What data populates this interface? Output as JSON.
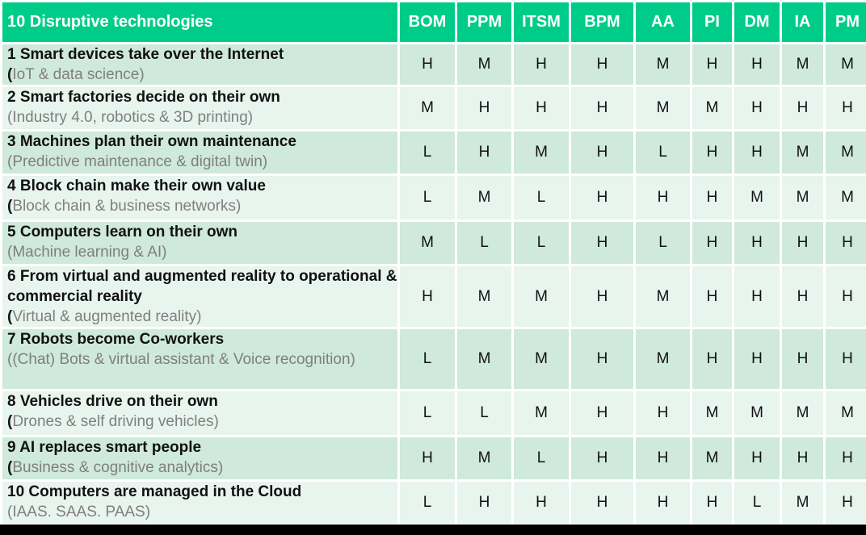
{
  "header": {
    "title": "10 Disruptive technologies",
    "columns": [
      "BOM",
      "PPM",
      "ITSM",
      "BPM",
      "AA",
      "PI",
      "DM",
      "IA",
      "PM"
    ]
  },
  "rows": [
    {
      "title": "1 Smart devices take over the Internet",
      "sub_open": "(",
      "sub": "IoT & data science)",
      "values": [
        "H",
        "M",
        "H",
        "H",
        "M",
        "H",
        "H",
        "M",
        "M"
      ]
    },
    {
      "title": "2 Smart factories decide on their own",
      "sub_open": "",
      "sub": "(Industry 4.0, robotics & 3D printing)",
      "values": [
        "M",
        "H",
        "H",
        "H",
        "M",
        "M",
        "H",
        "H",
        "H"
      ]
    },
    {
      "title": "3 Machines plan their own maintenance",
      "sub_open": "",
      "sub": "(Predictive maintenance & digital twin)",
      "values": [
        "L",
        "H",
        "M",
        "H",
        "L",
        "H",
        "H",
        "M",
        "M"
      ]
    },
    {
      "title": "4 Block chain make their own value",
      "sub_open": "(",
      "sub": "Block chain & business networks)",
      "values": [
        "L",
        "M",
        "L",
        "H",
        "H",
        "H",
        "M",
        "M",
        "M"
      ]
    },
    {
      "title": "5 Computers learn on their own",
      "sub_open": "",
      "sub": "(Machine learning & AI)",
      "values": [
        "M",
        "L",
        "L",
        "H",
        "L",
        "H",
        "H",
        "H",
        "H"
      ]
    },
    {
      "title": "6 From virtual and augmented reality to operational & commercial reality",
      "sub_open": " (",
      "sub": "Virtual & augmented reality)",
      "values": [
        "H",
        "M",
        "M",
        "H",
        "M",
        "H",
        "H",
        "H",
        "H"
      ]
    },
    {
      "title": "7 Robots become Co-workers",
      "sub_open": "",
      "sub": "((Chat) Bots & virtual assistant & Voice recognition)",
      "values": [
        "L",
        "M",
        "M",
        "H",
        "M",
        "H",
        "H",
        "H",
        "H"
      ]
    },
    {
      "title": "8 Vehicles drive on their own",
      "sub_open": "(",
      "sub": "Drones  & self driving vehicles)",
      "values": [
        "L",
        "L",
        "M",
        "H",
        "H",
        "M",
        "M",
        "M",
        "M"
      ]
    },
    {
      "title": "9 AI replaces smart people",
      "sub_open": " (",
      "sub": "Business & cognitive analytics)",
      "values": [
        "H",
        "M",
        "L",
        "H",
        "H",
        "M",
        "H",
        "H",
        "H"
      ]
    },
    {
      "title": "10 Computers are managed in the Cloud",
      "sub_open": "",
      "sub": "(IAAS. SAAS. PAAS)",
      "values": [
        "L",
        "H",
        "H",
        "H",
        "H",
        "H",
        "L",
        "M",
        "H"
      ]
    }
  ]
}
